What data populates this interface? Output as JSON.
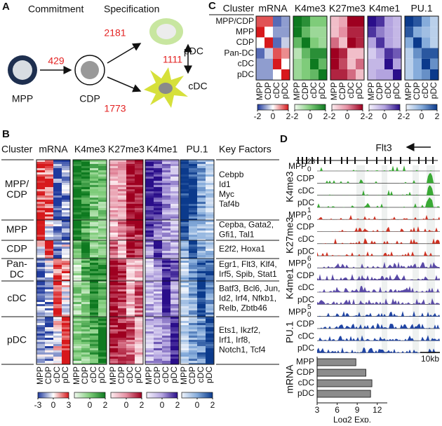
{
  "panel_a": {
    "label": "A",
    "headings": [
      "Commitment",
      "Specification"
    ],
    "cells": [
      "MPP",
      "CDP",
      "pDC",
      "cDC"
    ],
    "counts": [
      429,
      2181,
      1773,
      1111
    ]
  },
  "colormaps": [
    [
      "#1f3a9e",
      "#ffffff",
      "#d7191c"
    ],
    [
      "#f2faf0",
      "#7fcc7a",
      "#0e7a20"
    ],
    [
      "#fcecef",
      "#e58fa2",
      "#9e0020"
    ],
    [
      "#f5f2fc",
      "#b3a3df",
      "#2a0e8a"
    ],
    [
      "#eef3fb",
      "#86acdb",
      "#0b3a8c"
    ]
  ],
  "panel_b": {
    "label": "B",
    "cluster_header": "Cluster",
    "key_factors_header": "Key Factors",
    "marks": [
      "mRNA",
      "K4me3",
      "K27me3",
      "K4me1",
      "PU.1"
    ],
    "samples": [
      "MPP",
      "CDP",
      "cDC",
      "pDC"
    ],
    "clusters": [
      {
        "lines": [
          "MPP/",
          "CDP"
        ],
        "factors": [
          "Cebpb",
          "Id1",
          "Myc",
          "Taf4b"
        ]
      },
      {
        "lines": [
          "MPP"
        ],
        "factors": [
          "Cepba, Gata2,",
          "Gfi1, Tal1"
        ]
      },
      {
        "lines": [
          "CDP"
        ],
        "factors": [
          "E2f2, Hoxa1"
        ]
      },
      {
        "lines": [
          "Pan-",
          "DC"
        ],
        "factors": [
          "Egr1, Flt3, Klf4,",
          "Irf5, Spib, Stat1"
        ]
      },
      {
        "lines": [
          "cDC"
        ],
        "factors": [
          "Batf3, Bcl6, Jun,",
          "Id2, Irf4, Nfkb1,",
          "Relb, Zbtb46"
        ]
      },
      {
        "lines": [
          "pDC"
        ],
        "factors": [
          "Ets1, Ikzf2,",
          "Irf1, Irf8,",
          "Notch1, Tcf4"
        ]
      }
    ],
    "colorbars": [
      {
        "lim": [
          -3,
          3
        ],
        "ticks": [
          -3,
          0,
          3
        ]
      },
      {
        "lim": [
          -2,
          2
        ],
        "ticks": [
          0,
          2
        ]
      },
      {
        "lim": [
          -2,
          2
        ],
        "ticks": [
          0,
          2
        ]
      },
      {
        "lim": [
          -2,
          2
        ],
        "ticks": [
          0,
          2
        ]
      },
      {
        "lim": [
          -2,
          2
        ],
        "ticks": [
          0,
          2
        ]
      }
    ]
  },
  "panel_c": {
    "label": "C",
    "cluster_header": "Cluster",
    "clusters": [
      "MPP/CDP",
      "MPP",
      "CDP",
      "Pan-DC",
      "cDC",
      "pDC"
    ],
    "samples": [
      "MPP",
      "CDP",
      "cDC",
      "pDC"
    ],
    "marks": [
      {
        "name": "mRNA",
        "lim": [
          -2,
          2
        ],
        "ticks": [
          -2,
          0,
          2
        ],
        "values": [
          [
            1.5,
            1.5,
            -1.5,
            -1
          ],
          [
            2,
            0,
            -1,
            -1
          ],
          [
            0,
            2,
            -1.5,
            -0.5
          ],
          [
            -1.5,
            -0.5,
            1.5,
            1
          ],
          [
            -1,
            -1,
            2,
            0
          ],
          [
            -1,
            -1,
            0,
            2
          ]
        ]
      },
      {
        "name": "K4me3",
        "lim": [
          -2,
          2
        ],
        "ticks": [
          -2,
          0,
          2
        ],
        "values": [
          [
            2,
            1.5,
            0,
            0
          ],
          [
            2,
            0.5,
            -0.5,
            -0.5
          ],
          [
            0.5,
            2,
            0,
            -0.5
          ],
          [
            -1,
            0.5,
            1.5,
            1.5
          ],
          [
            -0.5,
            0,
            2,
            0.5
          ],
          [
            -0.5,
            0,
            0.5,
            2
          ]
        ]
      },
      {
        "name": "K27me3",
        "lim": [
          -2,
          2
        ],
        "ticks": [
          -2,
          0,
          2
        ],
        "values": [
          [
            -1,
            -0.5,
            2,
            2
          ],
          [
            -1,
            0,
            1.5,
            1.5
          ],
          [
            0.5,
            -1,
            2,
            1.5
          ],
          [
            2,
            1.5,
            -1,
            -1
          ],
          [
            2,
            1,
            -1,
            0.5
          ],
          [
            1.5,
            1.5,
            0.5,
            -1
          ]
        ]
      },
      {
        "name": "K4me1",
        "lim": [
          -2,
          2
        ],
        "ticks": [
          -2,
          0,
          2
        ],
        "values": [
          [
            2,
            1.5,
            0,
            -0.5
          ],
          [
            1.5,
            0.5,
            0,
            -0.5
          ],
          [
            0,
            1.5,
            0,
            -0.5
          ],
          [
            -1,
            0,
            1.5,
            1
          ],
          [
            -0.5,
            -0.5,
            2,
            0
          ],
          [
            -0.5,
            0,
            0,
            2
          ]
        ]
      },
      {
        "name": "PU.1",
        "lim": [
          -2,
          2
        ],
        "ticks": [
          -2,
          0,
          2
        ],
        "values": [
          [
            2,
            1.5,
            0,
            -1
          ],
          [
            1.5,
            0,
            -0.5,
            -1
          ],
          [
            0,
            2,
            0,
            -1
          ],
          [
            -1,
            0.5,
            1.5,
            1.5
          ],
          [
            -1,
            0,
            2,
            0.5
          ],
          [
            -1,
            0,
            0.5,
            2
          ]
        ]
      }
    ]
  },
  "panel_d": {
    "label": "D",
    "gene": "Flt3",
    "samples": [
      "MPP",
      "CDP",
      "cDC",
      "pDC"
    ],
    "marks": [
      {
        "name": "K4me3",
        "color": "#3aaa35",
        "ymax": 28,
        "ymin": 0
      },
      {
        "name": "K27me3",
        "color": "#d03020",
        "ymax": 1,
        "ymin": 0
      },
      {
        "name": "K4me1",
        "color": "#5a4aa8",
        "ymax": 6,
        "ymin": 0
      },
      {
        "name": "PU.1",
        "color": "#2045a5",
        "ymax": 5,
        "ymin": 0
      }
    ],
    "scale_bar": "10kb",
    "expression": {
      "title": "mRNA",
      "categories": [
        "MPP",
        "CDP",
        "cDC",
        "pDC"
      ],
      "values": [
        8.8,
        10.3,
        11.2,
        11.0
      ],
      "xlim": [
        3,
        13.5
      ],
      "xticks": [
        3,
        6,
        9,
        12
      ],
      "xlabel": "Log2 Exp.",
      "color": "#8c8c8c"
    }
  }
}
